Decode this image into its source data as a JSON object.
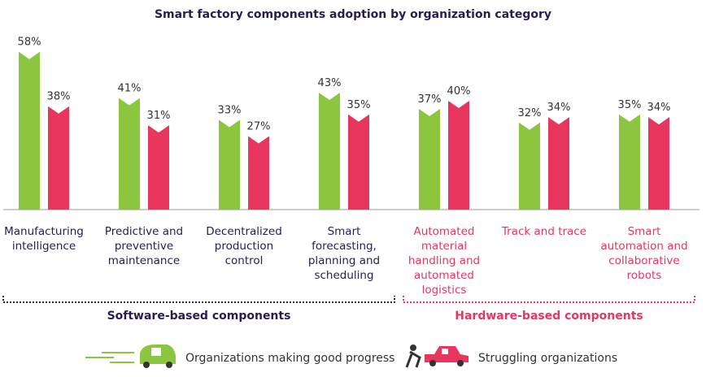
{
  "chart_data": {
    "type": "bar",
    "title": "Smart factory components adoption by organization category",
    "series": [
      {
        "name": "Organizations making good progress",
        "color": "#8cc63f"
      },
      {
        "name": "Struggling organizations",
        "color": "#e8365e"
      }
    ],
    "groups": [
      {
        "label": "Software-based components",
        "color": "#2b1c4f",
        "categories": [
          "Manufacturing intelligence",
          "Predictive and preventive maintenance",
          "Decentralized production control",
          "Smart forecasting, planning and scheduling"
        ],
        "series": [
          {
            "values": [
              58,
              41,
              33,
              43
            ],
            "value_labels": [
              "58%",
              "41%",
              "33%",
              "43%"
            ]
          },
          {
            "values": [
              38,
              31,
              27,
              35
            ],
            "value_labels": [
              "38%",
              "31%",
              "27%",
              "35%"
            ]
          }
        ]
      },
      {
        "label": "Hardware-based components",
        "color": "#e8365e",
        "categories": [
          "Automated material handling and automated logistics",
          "Track and trace",
          "Smart automation and collaborative robots"
        ],
        "series": [
          {
            "values": [
              37,
              32,
              35
            ],
            "value_labels": [
              "37%",
              "32%",
              "35%"
            ]
          },
          {
            "values": [
              40,
              34,
              34
            ],
            "value_labels": [
              "40%",
              "34%",
              "34%"
            ]
          }
        ]
      }
    ]
  }
}
